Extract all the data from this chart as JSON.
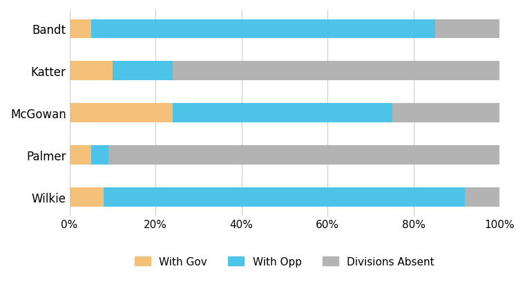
{
  "categories": [
    "Bandt",
    "Katter",
    "McGowan",
    "Palmer",
    "Wilkie"
  ],
  "with_gov": [
    5,
    10,
    24,
    5,
    8
  ],
  "with_opp": [
    80,
    14,
    51,
    4,
    84
  ],
  "div_absent": [
    15,
    76,
    25,
    91,
    8
  ],
  "color_gov": "#F5C07A",
  "color_opp": "#4DC3E8",
  "color_absent": "#B3B3B3",
  "legend_labels": [
    "With Gov",
    "With Opp",
    "Divisions Absent"
  ],
  "xlim": [
    0,
    100
  ],
  "xtick_vals": [
    0,
    20,
    40,
    60,
    80,
    100
  ],
  "xtick_labels": [
    "0%",
    "20%",
    "40%",
    "60%",
    "80%",
    "100%"
  ],
  "bar_height": 0.45,
  "figsize": [
    7.6,
    4.35
  ],
  "dpi": 100,
  "grid_color": "#CCCCCC",
  "background_color": "#FFFFFF",
  "ytick_fontsize": 12,
  "xtick_fontsize": 11,
  "legend_fontsize": 11
}
